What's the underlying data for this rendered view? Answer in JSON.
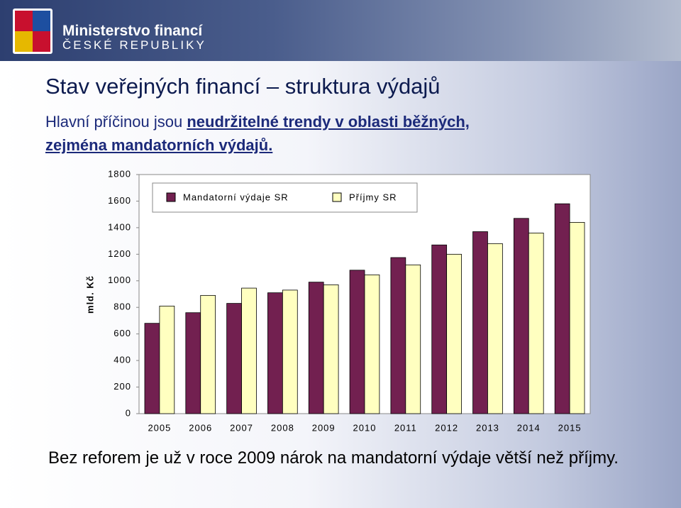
{
  "logo": {
    "line1": "Ministerstvo financí",
    "line2": "ČESKÉ REPUBLIKY"
  },
  "slide": {
    "title": "Stav veřejných financí – struktura výdajů",
    "subtitle": [
      "Hlavní příčinou jsou",
      "neudržitelné trendy v oblasti běžných,",
      "zejména mandatorních výdajů."
    ],
    "conclusion": "Bez reforem je už v roce 2009 nárok na mandatorní výdaje větší než příjmy."
  },
  "chart_data": {
    "type": "bar",
    "y_label": "mld. Kč",
    "categories": [
      "2005",
      "2006",
      "2007",
      "2008",
      "2009",
      "2010",
      "2011",
      "2012",
      "2013",
      "2014",
      "2015"
    ],
    "series": [
      {
        "name": "Mandatorní výdaje SR",
        "color": "#722050",
        "values": [
          680,
          760,
          830,
          910,
          990,
          1080,
          1175,
          1270,
          1370,
          1470,
          1580
        ]
      },
      {
        "name": "Příjmy SR",
        "color": "#ffffc0",
        "values": [
          810,
          890,
          945,
          930,
          970,
          1045,
          1120,
          1200,
          1280,
          1360,
          1440
        ]
      }
    ],
    "ylim": [
      0,
      1800
    ],
    "yticks": [
      0,
      200,
      400,
      600,
      800,
      1000,
      1200,
      1400,
      1600,
      1800
    ],
    "legend": "top-left"
  }
}
